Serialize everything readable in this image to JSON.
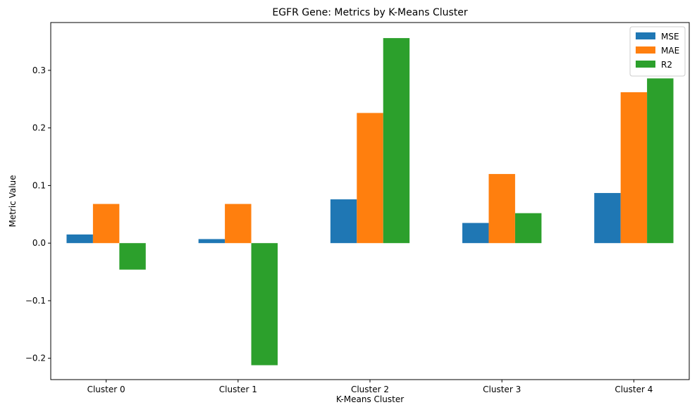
{
  "chart_data": {
    "type": "bar",
    "title": "EGFR Gene: Metrics by K-Means Cluster",
    "xlabel": "K-Means Cluster",
    "ylabel": "Metric Value",
    "categories": [
      "Cluster 0",
      "Cluster 1",
      "Cluster 2",
      "Cluster 3",
      "Cluster 4"
    ],
    "series": [
      {
        "name": "MSE",
        "color": "#1f77b4",
        "values": [
          0.015,
          0.007,
          0.076,
          0.035,
          0.087
        ]
      },
      {
        "name": "MAE",
        "color": "#ff7f0e",
        "values": [
          0.068,
          0.068,
          0.226,
          0.12,
          0.262
        ]
      },
      {
        "name": "R2",
        "color": "#2ca02c",
        "values": [
          -0.046,
          -0.212,
          0.356,
          0.052,
          0.286
        ]
      }
    ],
    "ylim": [
      -0.237,
      0.383
    ],
    "yticks": [
      -0.2,
      -0.1,
      0.0,
      0.1,
      0.2,
      0.3
    ],
    "ytick_labels": [
      "−0.2",
      "−0.1",
      "0.0",
      "0.1",
      "0.2",
      "0.3"
    ],
    "grid": false,
    "legend_position": "top-right"
  }
}
